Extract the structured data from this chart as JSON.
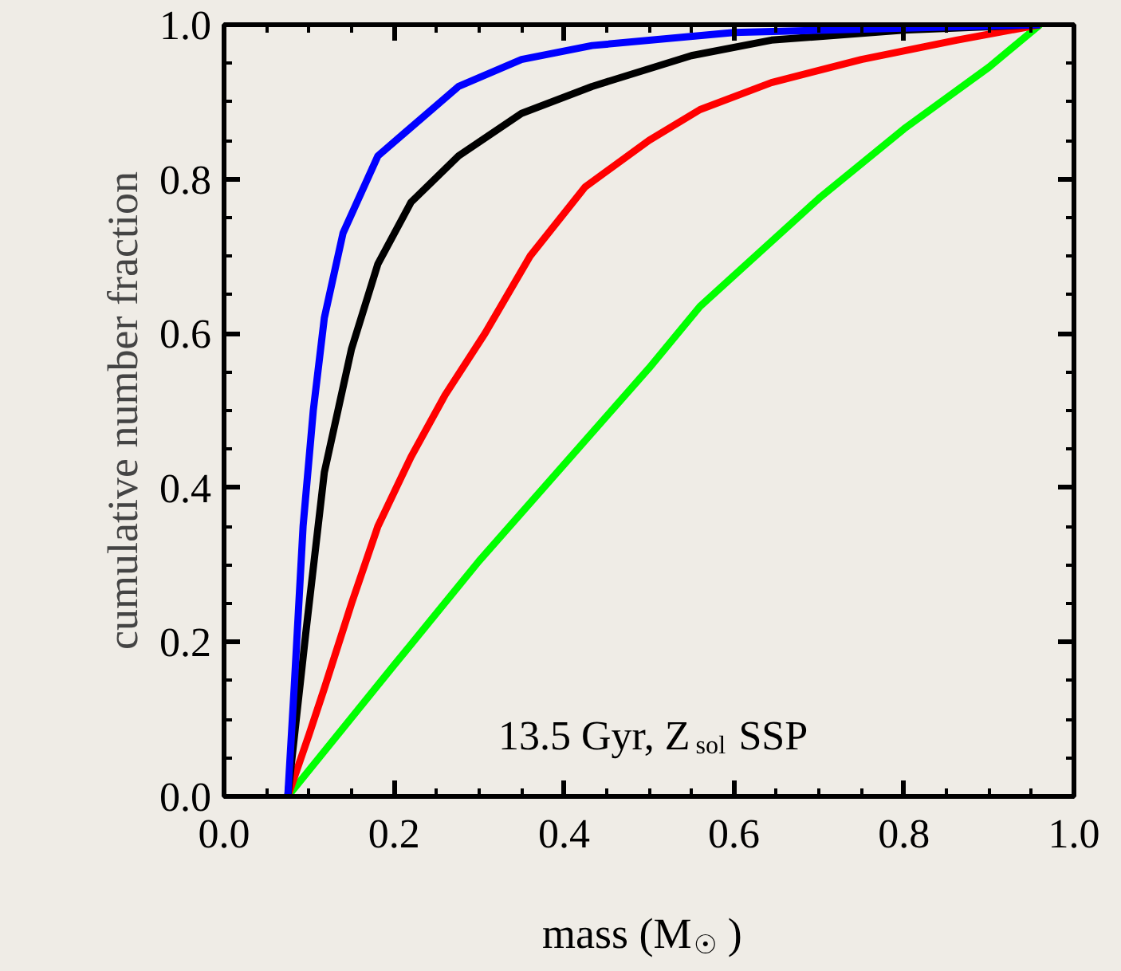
{
  "chart_data": {
    "type": "line",
    "xlabel": "mass (M$_{☉}$)",
    "ylabel": "cumulative number fraction",
    "annotations": [
      "13.5 Gyr, Z$_{sol}$ SSP"
    ],
    "xlim": [
      0,
      1
    ],
    "ylim": [
      0,
      1
    ],
    "xticks": [
      {
        "value": 0,
        "label": "0.0"
      },
      {
        "value": 0.2,
        "label": "0.2"
      },
      {
        "value": 0.4,
        "label": "0.4"
      },
      {
        "value": 0.6,
        "label": "0.6"
      },
      {
        "value": 0.8,
        "label": "0.8"
      },
      {
        "value": 1,
        "label": "1.0"
      }
    ],
    "yticks": [
      {
        "value": 0,
        "label": "0.0"
      },
      {
        "value": 0.2,
        "label": "0.2"
      },
      {
        "value": 0.4,
        "label": "0.4"
      },
      {
        "value": 0.6,
        "label": "0.6"
      },
      {
        "value": 0.8,
        "label": "0.8"
      },
      {
        "value": 1,
        "label": "1.0"
      }
    ],
    "grid": false,
    "line_style": "solid",
    "series": [
      {
        "color": "#00ff00",
        "x": [
          0.075,
          0.2,
          0.3,
          0.4,
          0.5,
          0.56,
          0.6,
          0.7,
          0.8,
          0.9,
          0.96
        ],
        "values": [
          0,
          0.17,
          0.305,
          0.43,
          0.555,
          0.635,
          0.675,
          0.775,
          0.865,
          0.945,
          1
        ]
      },
      {
        "color": "#ff0000",
        "x": [
          0.075,
          0.1,
          0.118,
          0.15,
          0.181,
          0.22,
          0.26,
          0.307,
          0.36,
          0.425,
          0.5,
          0.56,
          0.644,
          0.75,
          0.862,
          0.96
        ],
        "values": [
          0,
          0.08,
          0.14,
          0.25,
          0.35,
          0.44,
          0.52,
          0.6,
          0.7,
          0.79,
          0.85,
          0.89,
          0.925,
          0.955,
          0.98,
          1
        ]
      },
      {
        "color": "#000000",
        "x": [
          0.075,
          0.085,
          0.096,
          0.118,
          0.15,
          0.181,
          0.22,
          0.276,
          0.35,
          0.433,
          0.55,
          0.644,
          0.8,
          0.96
        ],
        "values": [
          0,
          0.1,
          0.21,
          0.42,
          0.58,
          0.69,
          0.77,
          0.83,
          0.885,
          0.92,
          0.96,
          0.98,
          0.993,
          1
        ]
      },
      {
        "color": "#0000ff",
        "x": [
          0.075,
          0.083,
          0.093,
          0.105,
          0.118,
          0.14,
          0.181,
          0.276,
          0.35,
          0.433,
          0.6,
          0.96
        ],
        "values": [
          0,
          0.15,
          0.35,
          0.5,
          0.62,
          0.73,
          0.83,
          0.92,
          0.955,
          0.973,
          0.99,
          1
        ]
      }
    ]
  }
}
